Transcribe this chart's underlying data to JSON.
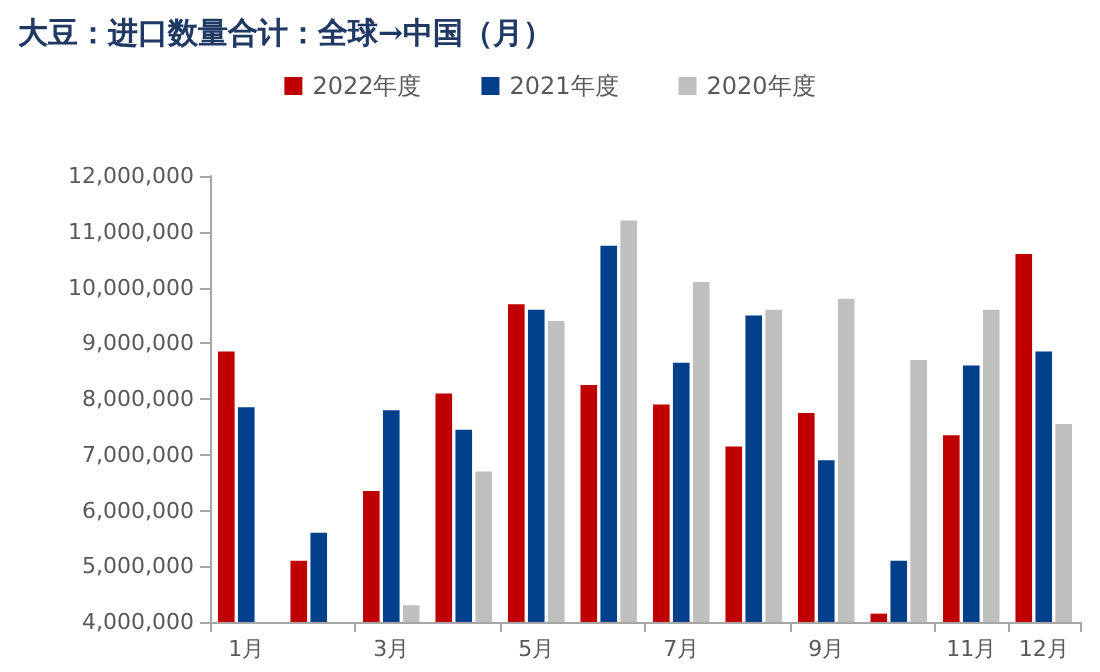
{
  "chart_data": {
    "type": "bar",
    "title": "大豆：进口数量合计：全球→中国（月）",
    "categories": [
      "1月",
      null,
      "3月",
      null,
      "5月",
      null,
      "7月",
      null,
      "9月",
      null,
      "11月",
      "12月"
    ],
    "series": [
      {
        "name": "2022年度",
        "color": "#c00000",
        "values": [
          8850000,
          5100000,
          6350000,
          8100000,
          9700000,
          8250000,
          7900000,
          7150000,
          7750000,
          4150000,
          7350000,
          10600000
        ]
      },
      {
        "name": "2021年度",
        "color": "#003f8a",
        "values": [
          7850000,
          5600000,
          7800000,
          7450000,
          9600000,
          10750000,
          8650000,
          9500000,
          6900000,
          5100000,
          8600000,
          8850000
        ]
      },
      {
        "name": "2020年度",
        "color": "#bfbfbf",
        "values": [
          null,
          null,
          4300000,
          6700000,
          9400000,
          11200000,
          10100000,
          9600000,
          9800000,
          8700000,
          9600000,
          7550000
        ]
      }
    ],
    "ylim": [
      4000000,
      12000000
    ],
    "yticks": [
      {
        "value": 4000000,
        "label": "4,000,000"
      },
      {
        "value": 5000000,
        "label": "5,000,000"
      },
      {
        "value": 6000000,
        "label": "6,000,000"
      },
      {
        "value": 7000000,
        "label": "7,000,000"
      },
      {
        "value": 8000000,
        "label": "8,000,000"
      },
      {
        "value": 9000000,
        "label": "9,000,000"
      },
      {
        "value": 10000000,
        "label": "10,000,000"
      },
      {
        "value": 11000000,
        "label": "11,000,000"
      },
      {
        "value": 12000000,
        "label": "12,000,000"
      }
    ],
    "grid": false,
    "legend": "top"
  }
}
